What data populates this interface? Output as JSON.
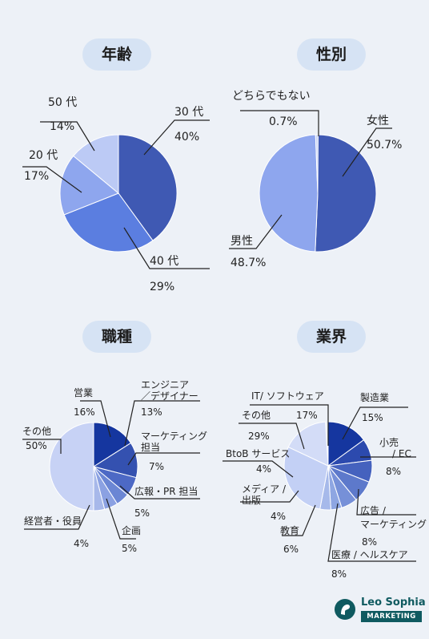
{
  "charts": [
    {
      "title": "年齢",
      "type": "pie",
      "slices": [
        {
          "label": "30 代",
          "value": "40%",
          "pct": 40,
          "color": "#3f59b3"
        },
        {
          "label": "40 代",
          "value": "29%",
          "pct": 29,
          "color": "#5b7ee0"
        },
        {
          "label": "20 代",
          "value": "17%",
          "pct": 17,
          "color": "#8ea6ee"
        },
        {
          "label": "50 代",
          "value": "14%",
          "pct": 14,
          "color": "#bccaf5"
        }
      ]
    },
    {
      "title": "性別",
      "type": "pie",
      "slices": [
        {
          "label": "女性",
          "value": "50.7%",
          "pct": 50.7,
          "color": "#3f59b3"
        },
        {
          "label": "男性",
          "value": "48.7%",
          "pct": 48.7,
          "color": "#8ea6ee"
        },
        {
          "label": "どちらでもない",
          "value": "0.7%",
          "pct": 0.7,
          "color": "#c9d4f5"
        }
      ]
    },
    {
      "title": "職種",
      "type": "pie",
      "slices": [
        {
          "label": "営業",
          "value": "16%",
          "pct": 16,
          "color": "#15369f"
        },
        {
          "label": "エンジニア／デザイナー",
          "value": "13%",
          "pct": 13,
          "color": "#3451b0"
        },
        {
          "label": "マーケティング担当",
          "value": "7%",
          "pct": 7,
          "color": "#4d69c5"
        },
        {
          "label": "広報・PR 担当",
          "value": "5%",
          "pct": 5,
          "color": "#6b86d4"
        },
        {
          "label": "企画",
          "value": "5%",
          "pct": 5,
          "color": "#8ba1e2"
        },
        {
          "label": "経営者・役員",
          "value": "4%",
          "pct": 4,
          "color": "#a7b8ea"
        },
        {
          "label": "その他",
          "value": "50%",
          "pct": 50,
          "color": "#c7d2f5"
        }
      ]
    },
    {
      "title": "業界",
      "type": "pie",
      "slices": [
        {
          "label": "製造業",
          "value": "15%",
          "pct": 15,
          "color": "#15369f"
        },
        {
          "label": "小売 / EC",
          "value": "8%",
          "pct": 8,
          "color": "#2c4aae"
        },
        {
          "label": "広告 / マーケティング",
          "value": "8%",
          "pct": 8,
          "color": "#4562be"
        },
        {
          "label": "医療 / ヘルスケア",
          "value": "8%",
          "pct": 8,
          "color": "#5d79cb"
        },
        {
          "label": "教育",
          "value": "6%",
          "pct": 6,
          "color": "#7690d8"
        },
        {
          "label": "メディア / 出版",
          "value": "4%",
          "pct": 4,
          "color": "#8ea6e2"
        },
        {
          "label": "BtoB サービス",
          "value": "4%",
          "pct": 4,
          "color": "#a6b9ea"
        },
        {
          "label": "その他",
          "value": "29%",
          "pct": 29,
          "color": "#c3d0f5"
        },
        {
          "label": "IT/ ソフトウェア",
          "value": "17%",
          "pct": 17,
          "color": "#d3dcf7"
        }
      ]
    }
  ],
  "brand": {
    "name": "Leo Sophia",
    "sub": "MARKETING"
  }
}
